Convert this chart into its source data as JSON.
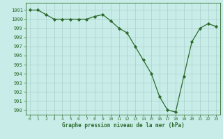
{
  "x": [
    0,
    1,
    2,
    3,
    4,
    5,
    6,
    7,
    8,
    9,
    10,
    11,
    12,
    13,
    14,
    15,
    16,
    17,
    18,
    19,
    20,
    21,
    22,
    23
  ],
  "y": [
    1001,
    1001,
    1000.5,
    1000,
    1000,
    1000,
    1000,
    1000,
    1000.3,
    1000.5,
    999.8,
    999,
    998.5,
    997,
    995.5,
    994,
    991.5,
    990,
    989.8,
    993.7,
    997.5,
    999,
    999.5,
    999.2
  ],
  "line_color": "#2d6a2d",
  "marker_color": "#2d6a2d",
  "bg_color": "#c8ede8",
  "grid_color": "#aacfca",
  "xlabel": "Graphe pression niveau de la mer (hPa)",
  "ylabel_ticks": [
    990,
    991,
    992,
    993,
    994,
    995,
    996,
    997,
    998,
    999,
    1000,
    1001
  ],
  "ylim": [
    989.5,
    1001.8
  ],
  "xlim": [
    -0.5,
    23.5
  ],
  "figsize": [
    3.2,
    2.0
  ],
  "dpi": 100
}
